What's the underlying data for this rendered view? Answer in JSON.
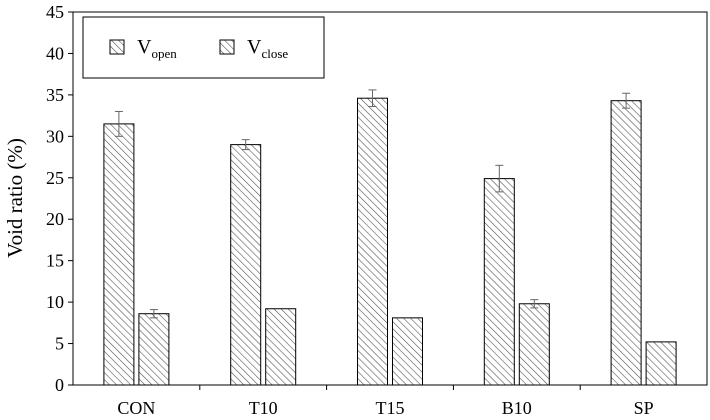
{
  "chart_data": {
    "type": "bar",
    "title": "",
    "xlabel": "",
    "ylabel": "Void ratio (%)",
    "ylim": [
      0,
      45
    ],
    "yticks": [
      0,
      5,
      10,
      15,
      20,
      25,
      30,
      35,
      40,
      45
    ],
    "categories": [
      "CON",
      "T10",
      "T15",
      "B10",
      "SP"
    ],
    "series": [
      {
        "name": "V_open",
        "label_main": "V",
        "label_sub": "open",
        "values": [
          31.5,
          29.0,
          34.6,
          24.9,
          34.3
        ],
        "errors": [
          1.5,
          0.6,
          1.0,
          1.6,
          0.9
        ]
      },
      {
        "name": "V_close",
        "label_main": "V",
        "label_sub": "close",
        "values": [
          8.6,
          9.2,
          8.1,
          9.8,
          5.2
        ],
        "errors": [
          0.5,
          0.0,
          0.0,
          0.5,
          0.0
        ]
      }
    ],
    "grid": false,
    "legend_position": "top-left",
    "colors": {
      "bar_fill": "#ffffff",
      "hatch": "#555555",
      "edge": "#000000",
      "error_bar": "#666666"
    }
  }
}
